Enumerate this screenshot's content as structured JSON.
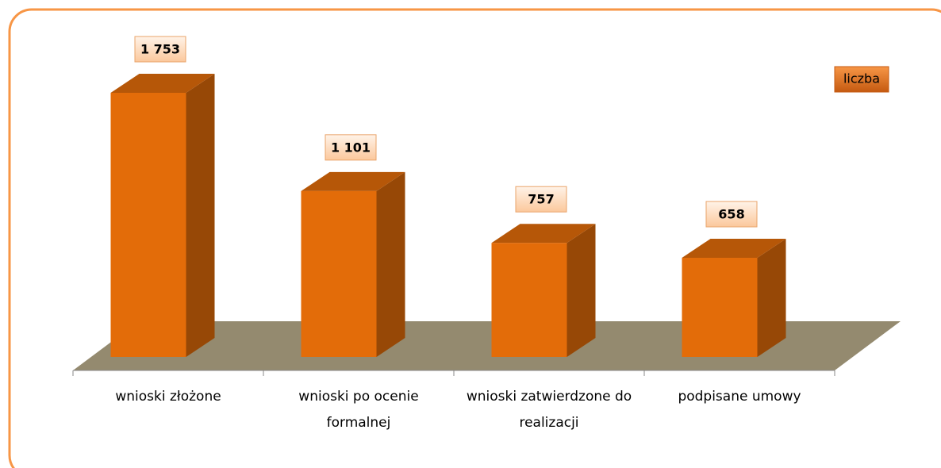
{
  "chart_data": {
    "type": "bar3d",
    "categories": [
      "wnioski złożone",
      "wnioski po ocenie formalnej",
      "wnioski zatwierdzone do realizacji",
      "podpisane umowy"
    ],
    "series": [
      {
        "name": "liczba",
        "color": "#e36c09",
        "values": [
          1753,
          1101,
          757,
          658
        ],
        "value_labels": [
          "1 753",
          "1 101",
          "757",
          "658"
        ]
      }
    ]
  }
}
